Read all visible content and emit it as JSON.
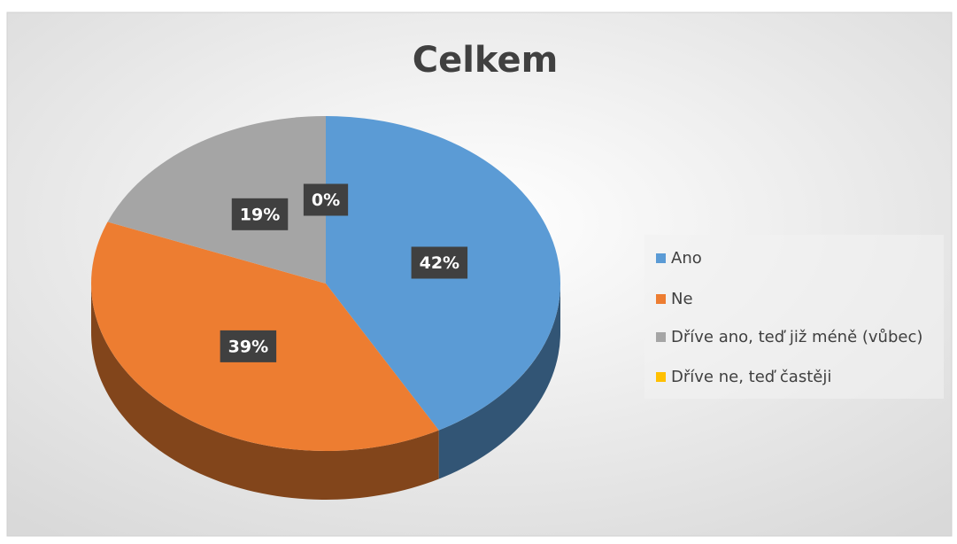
{
  "chart_data": {
    "type": "pie",
    "title": "Celkem",
    "categories": [
      "Ano",
      "Ne",
      "Dříve ano, teď již méně (vůbec)",
      "Dříve ne, teď častěji"
    ],
    "values": [
      42,
      39,
      19,
      0
    ],
    "value_labels": [
      "42%",
      "39%",
      "19%",
      "0%"
    ],
    "colors": [
      "#5b9bd5",
      "#ed7d31",
      "#a5a5a5",
      "#ffc000"
    ],
    "legend": "right"
  }
}
